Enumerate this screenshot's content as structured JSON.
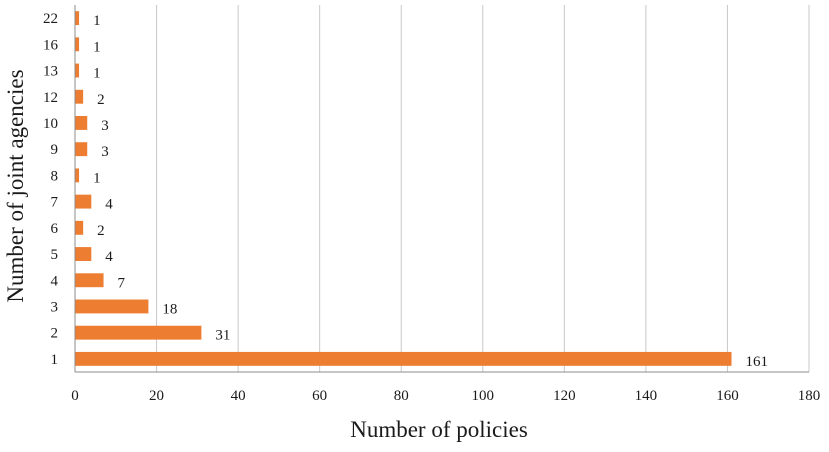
{
  "chart_data": {
    "type": "bar",
    "orientation": "horizontal",
    "categories": [
      "1",
      "2",
      "3",
      "4",
      "5",
      "6",
      "7",
      "8",
      "9",
      "10",
      "12",
      "13",
      "16",
      "22"
    ],
    "values": [
      161,
      31,
      18,
      7,
      4,
      2,
      4,
      1,
      3,
      3,
      2,
      1,
      1,
      1
    ],
    "data_labels": [
      "161",
      "31",
      "18",
      "7",
      "4",
      "2",
      "4",
      "1",
      "3",
      "3",
      "2",
      "1",
      "1",
      "1"
    ],
    "xlabel": "Number of policies",
    "ylabel": "Number of joint agencies",
    "xlim": [
      0,
      180
    ],
    "x_ticks": [
      0,
      20,
      40,
      60,
      80,
      100,
      120,
      140,
      160,
      180
    ],
    "x_tick_labels": [
      "0",
      "20",
      "40",
      "60",
      "80",
      "100",
      "120",
      "140",
      "160",
      "180"
    ],
    "grid": "vertical",
    "legend": "none",
    "bar_color": "#ed7d31"
  }
}
